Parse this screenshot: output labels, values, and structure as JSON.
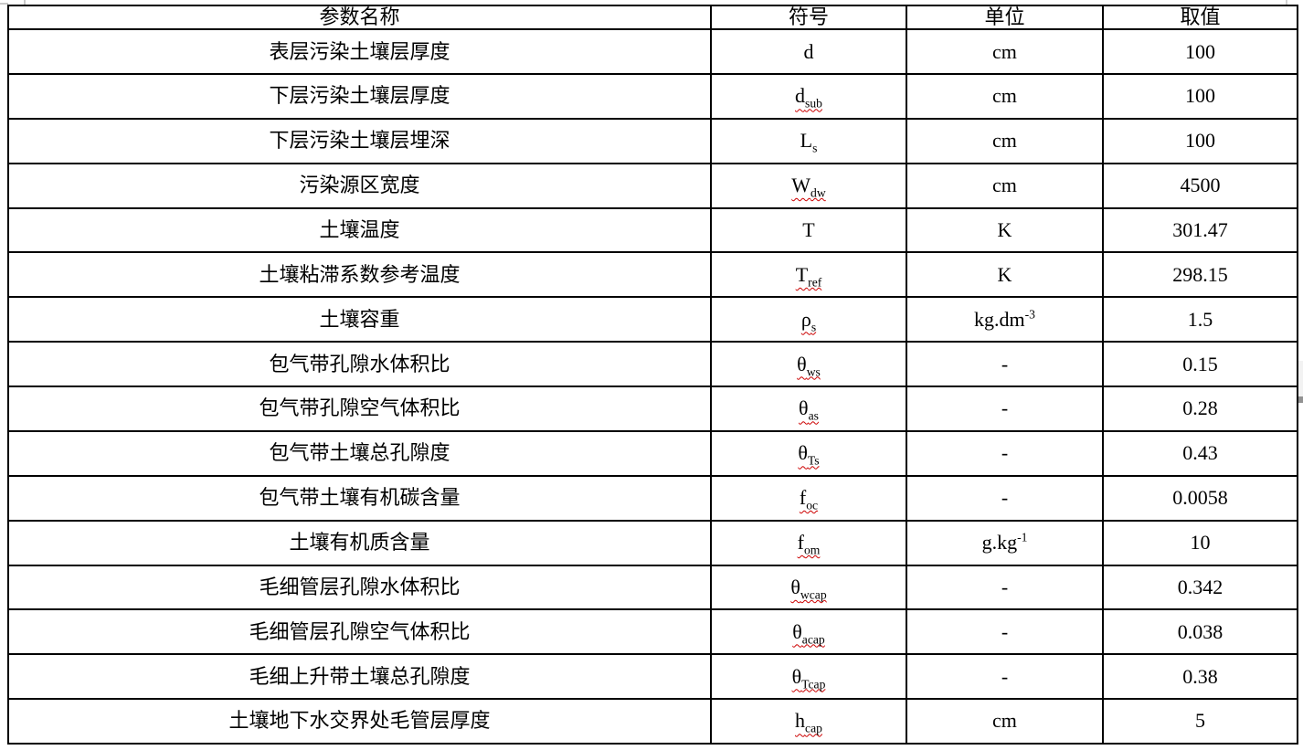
{
  "colors": {
    "border": "#000000",
    "text": "#000000",
    "spellcheck_squiggle": "#cc0000"
  },
  "table": {
    "headers": [
      {
        "label": "参数名称"
      },
      {
        "label": "符号"
      },
      {
        "label": "单位"
      },
      {
        "label": "取值"
      }
    ],
    "rows": [
      {
        "name": "表层污染土壤层厚度",
        "symbol": {
          "base": "d",
          "sub": "",
          "misspelled": false
        },
        "unit": {
          "base": "cm",
          "sup": ""
        },
        "value": "100"
      },
      {
        "name": "下层污染土壤层厚度",
        "symbol": {
          "base": "d",
          "sub": "sub",
          "misspelled": true
        },
        "unit": {
          "base": "cm",
          "sup": ""
        },
        "value": "100"
      },
      {
        "name": "下层污染土壤层埋深",
        "symbol": {
          "base": "L",
          "sub": "s",
          "misspelled": false
        },
        "unit": {
          "base": "cm",
          "sup": ""
        },
        "value": "100"
      },
      {
        "name": "污染源区宽度",
        "symbol": {
          "base": "W",
          "sub": "dw",
          "misspelled": true
        },
        "unit": {
          "base": "cm",
          "sup": ""
        },
        "value": "4500"
      },
      {
        "name": "土壤温度",
        "symbol": {
          "base": "T",
          "sub": "",
          "misspelled": false
        },
        "unit": {
          "base": "K",
          "sup": ""
        },
        "value": "301.47"
      },
      {
        "name": "土壤粘滞系数参考温度",
        "symbol": {
          "base": "T",
          "sub": "ref",
          "misspelled": true
        },
        "unit": {
          "base": "K",
          "sup": ""
        },
        "value": "298.15"
      },
      {
        "name": "土壤容重",
        "symbol": {
          "base": "ρ",
          "sub": "s",
          "misspelled": true
        },
        "unit": {
          "base": "kg.dm",
          "sup": "-3"
        },
        "value": "1.5"
      },
      {
        "name": "包气带孔隙水体积比",
        "symbol": {
          "base": "θ",
          "sub": "ws",
          "misspelled": true
        },
        "unit": {
          "base": "-",
          "sup": ""
        },
        "value": "0.15"
      },
      {
        "name": "包气带孔隙空气体积比",
        "symbol": {
          "base": "θ",
          "sub": "as",
          "misspelled": true
        },
        "unit": {
          "base": "-",
          "sup": ""
        },
        "value": "0.28"
      },
      {
        "name": "包气带土壤总孔隙度",
        "symbol": {
          "base": "θ",
          "sub": "Ts",
          "misspelled": true
        },
        "unit": {
          "base": "-",
          "sup": ""
        },
        "value": "0.43"
      },
      {
        "name": "包气带土壤有机碳含量",
        "symbol": {
          "base": "f",
          "sub": "oc",
          "misspelled": true
        },
        "unit": {
          "base": "-",
          "sup": ""
        },
        "value": "0.0058"
      },
      {
        "name": "土壤有机质含量",
        "symbol": {
          "base": "f",
          "sub": "om",
          "misspelled": true
        },
        "unit": {
          "base": "g.kg",
          "sup": "-1"
        },
        "value": "10"
      },
      {
        "name": "毛细管层孔隙水体积比",
        "symbol": {
          "base": "θ",
          "sub": "wcap",
          "misspelled": true
        },
        "unit": {
          "base": "-",
          "sup": ""
        },
        "value": "0.342"
      },
      {
        "name": "毛细管层孔隙空气体积比",
        "symbol": {
          "base": "θ",
          "sub": "acap",
          "misspelled": true
        },
        "unit": {
          "base": "-",
          "sup": ""
        },
        "value": "0.038"
      },
      {
        "name": "毛细上升带土壤总孔隙度",
        "symbol": {
          "base": "θ",
          "sub": "Tcap",
          "misspelled": true
        },
        "unit": {
          "base": "-",
          "sup": ""
        },
        "value": "0.38"
      },
      {
        "name": "土壤地下水交界处毛管层厚度",
        "symbol": {
          "base": "h",
          "sub": "cap",
          "misspelled": true
        },
        "unit": {
          "base": "cm",
          "sup": ""
        },
        "value": "5"
      }
    ]
  }
}
